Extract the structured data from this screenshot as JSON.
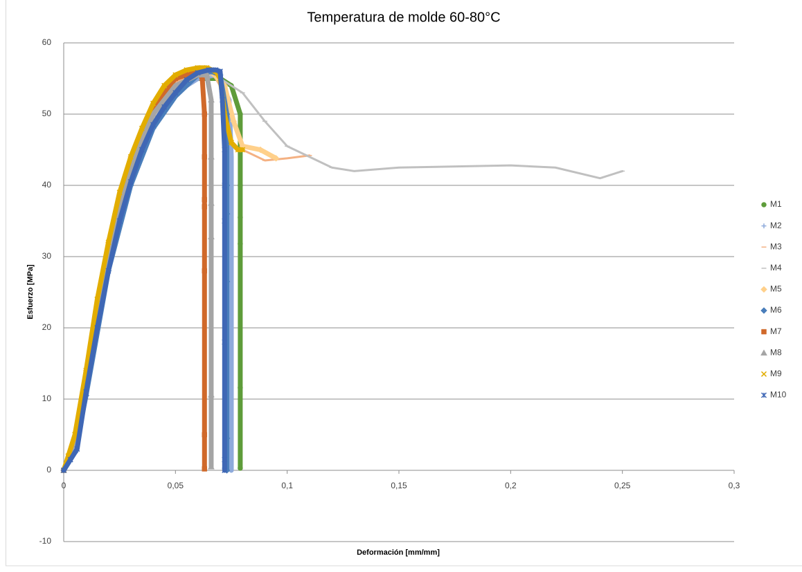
{
  "chart_data": {
    "type": "scatter",
    "title": "Temperatura de molde 60-80°C",
    "xlabel": "Deformación  [mm/mm]",
    "ylabel": "Esfuerzo [MPa]",
    "xlim": [
      0,
      0.3
    ],
    "ylim": [
      -10,
      60
    ],
    "xticks": [
      0,
      {
        "value": 0.05,
        "label": "0,05"
      },
      {
        "value": 0.1,
        "label": "0,1"
      },
      {
        "value": 0.15,
        "label": "0,15"
      },
      {
        "value": 0.2,
        "label": "0,2"
      },
      {
        "value": 0.25,
        "label": "0,25"
      },
      {
        "value": 0.3,
        "label": "0,3"
      }
    ],
    "yticks": [
      -10,
      0,
      10,
      20,
      30,
      40,
      50,
      60
    ],
    "grid": true,
    "legend": "right",
    "series": [
      {
        "name": "M1",
        "color": "#5e9c3a",
        "marker": "circle",
        "x": [
          0,
          0.005,
          0.01,
          0.02,
          0.03,
          0.04,
          0.05,
          0.06,
          0.07,
          0.075,
          0.079,
          0.079,
          0.079,
          0.079,
          0.079,
          0.079,
          0.079
        ],
        "values": [
          0,
          3,
          12,
          30,
          42,
          49.5,
          53.5,
          55,
          55,
          54,
          50,
          45,
          40,
          35.5,
          31.8,
          11.6,
          0.3
        ]
      },
      {
        "name": "M2",
        "color": "#8eaadb",
        "marker": "plus",
        "x": [
          0,
          0.005,
          0.01,
          0.02,
          0.03,
          0.04,
          0.05,
          0.06,
          0.068,
          0.074,
          0.075,
          0.075,
          0.075,
          0.075,
          0.075,
          0.075
        ],
        "values": [
          0,
          3,
          11.5,
          29,
          41,
          49,
          53,
          55,
          55.5,
          52,
          44,
          38,
          35,
          28,
          6,
          0
        ]
      },
      {
        "name": "M3",
        "color": "#f4b183",
        "marker": "dash",
        "x": [
          0,
          0.005,
          0.01,
          0.02,
          0.03,
          0.04,
          0.05,
          0.06,
          0.066,
          0.072,
          0.076,
          0.08,
          0.09,
          0.1,
          0.11
        ],
        "values": [
          0,
          3.5,
          13,
          31,
          43,
          50.5,
          54.5,
          56,
          56,
          53,
          49,
          45,
          43.5,
          43.8,
          44.2
        ]
      },
      {
        "name": "M4",
        "color": "#c0c0c0",
        "marker": "dash",
        "x": [
          0,
          0.005,
          0.01,
          0.02,
          0.03,
          0.04,
          0.05,
          0.06,
          0.065,
          0.07,
          0.08,
          0.09,
          0.1,
          0.12,
          0.13,
          0.15,
          0.2,
          0.22,
          0.24,
          0.25
        ],
        "values": [
          0,
          3,
          12,
          30,
          42,
          49.5,
          53.5,
          55.3,
          55.5,
          55,
          53,
          49,
          45.5,
          42.5,
          42,
          42.5,
          42.8,
          42.5,
          41,
          42
        ]
      },
      {
        "name": "M5",
        "color": "#ffd08a",
        "marker": "diamond",
        "x": [
          0,
          0.005,
          0.01,
          0.02,
          0.03,
          0.04,
          0.05,
          0.06,
          0.065,
          0.072,
          0.076,
          0.08,
          0.088,
          0.095
        ],
        "values": [
          0,
          4,
          14,
          32,
          44,
          51,
          55,
          56.3,
          56.3,
          54,
          49,
          45.5,
          45,
          43.8
        ]
      },
      {
        "name": "M6",
        "color": "#4a7ebb",
        "marker": "diamond",
        "x": [
          0,
          0.005,
          0.01,
          0.02,
          0.03,
          0.04,
          0.05,
          0.06,
          0.066,
          0.07,
          0.073,
          0.073,
          0.073,
          0.073,
          0.073,
          0.073
        ],
        "values": [
          0,
          2.5,
          10.5,
          28,
          40,
          48,
          52.5,
          55.5,
          56,
          55.5,
          50,
          40,
          36,
          26.5,
          4.5,
          0
        ]
      },
      {
        "name": "M7",
        "color": "#d0692a",
        "marker": "square",
        "x": [
          0,
          0.005,
          0.01,
          0.02,
          0.03,
          0.04,
          0.05,
          0.06,
          0.062,
          0.063,
          0.063,
          0.063,
          0.063,
          0.063,
          0.063,
          0.063
        ],
        "values": [
          0,
          3.5,
          13,
          31.5,
          43.5,
          51,
          55,
          56,
          55,
          50,
          44,
          38,
          37,
          28,
          5,
          0.2
        ]
      },
      {
        "name": "M8",
        "color": "#a5a5a5",
        "marker": "triangle",
        "x": [
          0,
          0.005,
          0.01,
          0.02,
          0.03,
          0.04,
          0.05,
          0.06,
          0.064,
          0.066,
          0.066,
          0.066,
          0.066,
          0.066,
          0.066
        ],
        "values": [
          0,
          3.2,
          12.5,
          30.5,
          42.5,
          50,
          54,
          55.5,
          55.5,
          52,
          44,
          37.5,
          32.8,
          10.6,
          0.5
        ]
      },
      {
        "name": "M9",
        "color": "#e2ad00",
        "marker": "x",
        "x": [
          0,
          0.002,
          0.005,
          0.01,
          0.015,
          0.02,
          0.025,
          0.03,
          0.035,
          0.04,
          0.045,
          0.05,
          0.055,
          0.06,
          0.064,
          0.068,
          0.07,
          0.072,
          0.075,
          0.078,
          0.08
        ],
        "values": [
          0,
          2,
          5,
          14,
          24,
          32,
          39,
          44,
          48,
          51.5,
          54,
          55.5,
          56.2,
          56.5,
          56.5,
          56,
          55,
          50,
          46,
          45,
          45
        ]
      },
      {
        "name": "M10",
        "color": "#3f67b5",
        "marker": "star",
        "x": [
          0,
          0.003,
          0.006,
          0.01,
          0.015,
          0.02,
          0.025,
          0.03,
          0.035,
          0.04,
          0.045,
          0.05,
          0.055,
          0.06,
          0.065,
          0.068,
          0.07,
          0.071,
          0.072,
          0.072,
          0.072,
          0.072,
          0.072,
          0.072
        ],
        "values": [
          0,
          1.5,
          3,
          11,
          20,
          28,
          35,
          40.5,
          45,
          48.5,
          51,
          53,
          54.8,
          55.8,
          56.2,
          56.2,
          56,
          52,
          45,
          40,
          35,
          18,
          1.5,
          0
        ]
      }
    ]
  }
}
